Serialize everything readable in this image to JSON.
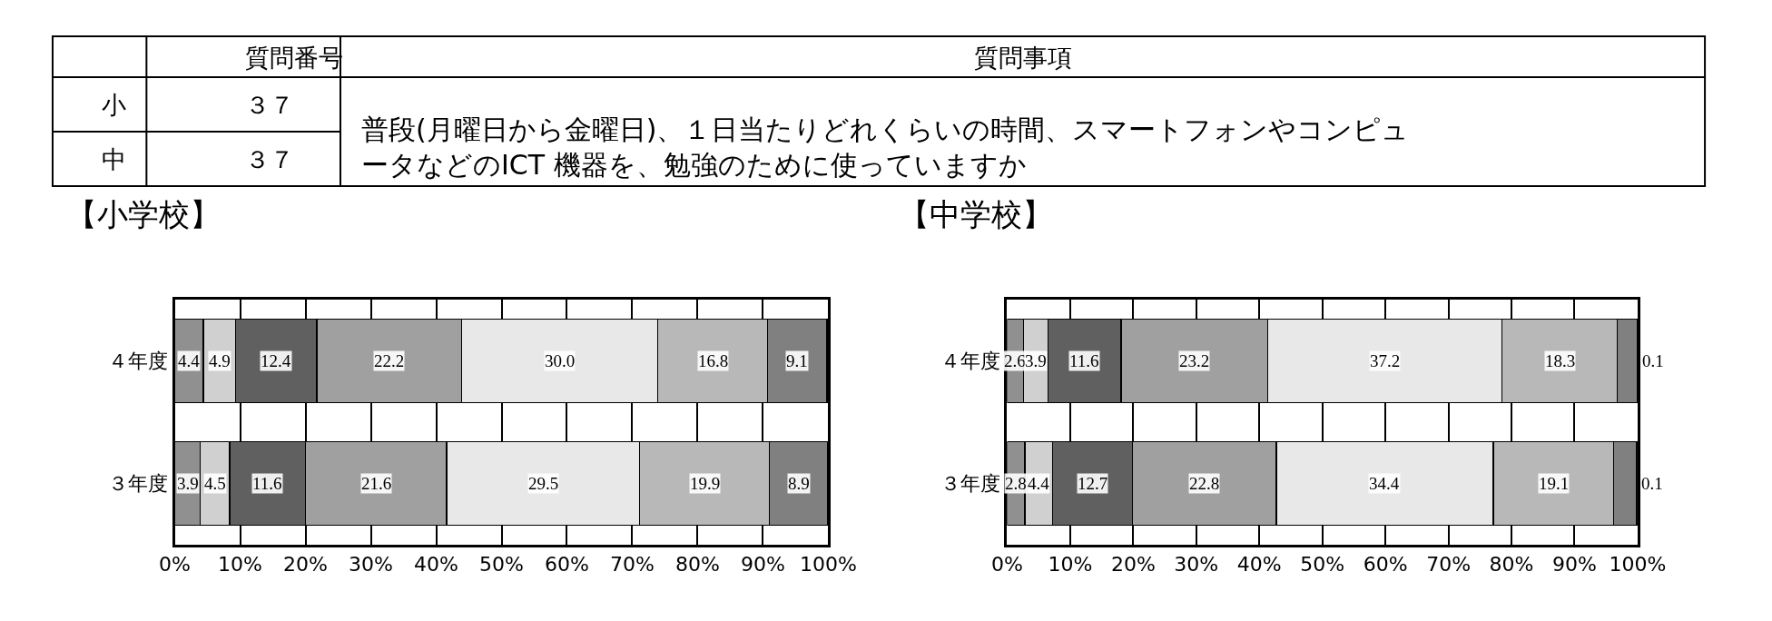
{
  "chart_data": [
    {
      "type": "other",
      "annotations": [
        "質問番号",
        "質問事項",
        "小",
        "３７",
        "中",
        "３７",
        "普段(月曜日から金曜日)、１日当たりどれくらいの時間、スマートフォンやコンピュータなどのICT 機器を、勉強のために使っていますか"
      ]
    },
    {
      "type": "bar",
      "title": "【小学校】",
      "orientation": "horizontal",
      "stacked": true,
      "categories": [
        "４年度",
        "３年度"
      ],
      "series": [
        {
          "color": "#909090",
          "values": [
            4.4,
            3.9
          ],
          "value_labels": [
            "4.4",
            "3.9"
          ]
        },
        {
          "color": "#d0d0d0",
          "values": [
            4.9,
            4.5
          ],
          "value_labels": [
            "4.9",
            "4.5"
          ]
        },
        {
          "color": "#606060",
          "values": [
            12.4,
            11.6
          ],
          "value_labels": [
            "12.4",
            "11.6"
          ]
        },
        {
          "color": "#a0a0a0",
          "values": [
            22.2,
            21.6
          ],
          "value_labels": [
            "22.2",
            "21.6"
          ]
        },
        {
          "color": "#e8e8e8",
          "values": [
            30.0,
            29.5
          ],
          "value_labels": [
            "30.0",
            "29.5"
          ]
        },
        {
          "color": "#b8b8b8",
          "values": [
            16.8,
            19.9
          ],
          "value_labels": [
            "16.8",
            "19.9"
          ]
        },
        {
          "color": "#808080",
          "values": [
            9.1,
            8.9
          ],
          "value_labels": [
            "9.1",
            "8.9"
          ]
        }
      ],
      "xlim": [
        0,
        100
      ],
      "xticks": [
        {
          "value": 0,
          "label": "0%"
        },
        {
          "value": 10,
          "label": "10%"
        },
        {
          "value": 20,
          "label": "20%"
        },
        {
          "value": 30,
          "label": "30%"
        },
        {
          "value": 40,
          "label": "40%"
        },
        {
          "value": 50,
          "label": "50%"
        },
        {
          "value": 60,
          "label": "60%"
        },
        {
          "value": 70,
          "label": "70%"
        },
        {
          "value": 80,
          "label": "80%"
        },
        {
          "value": 90,
          "label": "90%"
        },
        {
          "value": 100,
          "label": "100%"
        }
      ],
      "grid": "x"
    },
    {
      "type": "bar",
      "title": "【中学校】",
      "orientation": "horizontal",
      "stacked": true,
      "categories": [
        "４年度",
        "３年度"
      ],
      "series": [
        {
          "color": "#909090",
          "values": [
            2.6,
            2.8
          ],
          "value_labels": [
            "2.6",
            "2.8"
          ]
        },
        {
          "color": "#d0d0d0",
          "values": [
            3.9,
            4.4
          ],
          "value_labels": [
            "3.9",
            "4.4"
          ]
        },
        {
          "color": "#606060",
          "values": [
            11.6,
            12.7
          ],
          "value_labels": [
            "11.6",
            "12.7"
          ]
        },
        {
          "color": "#a0a0a0",
          "values": [
            23.2,
            22.8
          ],
          "value_labels": [
            "23.2",
            "22.8"
          ]
        },
        {
          "color": "#e8e8e8",
          "values": [
            37.2,
            34.4
          ],
          "value_labels": [
            "37.2",
            "34.4"
          ]
        },
        {
          "color": "#b8b8b8",
          "values": [
            18.3,
            19.1
          ],
          "value_labels": [
            "18.3",
            "19.1"
          ]
        },
        {
          "color": "#808080",
          "values": [
            3.1,
            3.6
          ],
          "value_labels": [
            null,
            null
          ]
        },
        {
          "color": "#707070",
          "values": [
            0.1,
            0.1
          ],
          "value_labels": [
            "0.1",
            "0.1"
          ]
        }
      ],
      "xlim": [
        0,
        100
      ],
      "xticks": [
        {
          "value": 0,
          "label": "0%"
        },
        {
          "value": 10,
          "label": "10%"
        },
        {
          "value": 20,
          "label": "20%"
        },
        {
          "value": 30,
          "label": "30%"
        },
        {
          "value": 40,
          "label": "40%"
        },
        {
          "value": 50,
          "label": "50%"
        },
        {
          "value": 60,
          "label": "60%"
        },
        {
          "value": 70,
          "label": "70%"
        },
        {
          "value": 80,
          "label": "80%"
        },
        {
          "value": 90,
          "label": "90%"
        },
        {
          "value": 100,
          "label": "100%"
        }
      ],
      "grid": "x"
    }
  ]
}
